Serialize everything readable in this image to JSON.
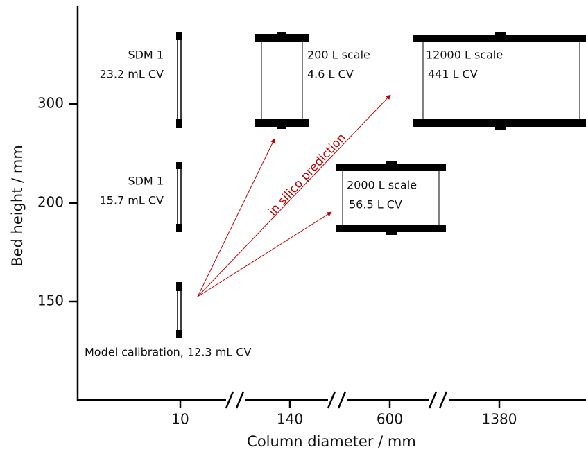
{
  "axes": {
    "x_label": "Column diameter / mm",
    "y_label": "Bed height / mm",
    "x_ticks": [
      "10",
      "140",
      "600",
      "1380"
    ],
    "y_ticks": [
      "300",
      "200",
      "150"
    ]
  },
  "columns": [
    {
      "name": "SDM 1",
      "volume": "23.2 mL CV"
    },
    {
      "name": "SDM 1",
      "volume": "15.7 mL CV"
    },
    {
      "name": "Model calibration, 12.3 mL CV"
    },
    {
      "name": "200 L scale",
      "volume": "4.6 L CV"
    },
    {
      "name": "2000 L scale",
      "volume": "56.5 L CV"
    },
    {
      "name": "12000 L scale",
      "volume": "441 L CV"
    }
  ],
  "annotation": "in silico prediction"
}
